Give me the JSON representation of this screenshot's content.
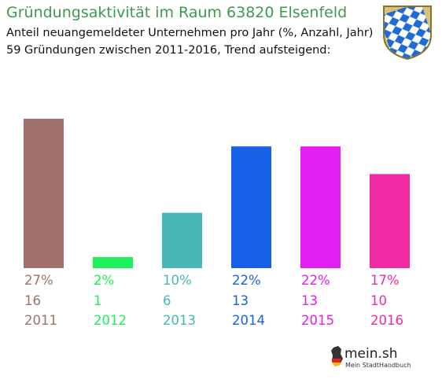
{
  "header": {
    "title": "Gründungsaktivität im Raum 63820 Elsenfeld",
    "subtitle": "Anteil neuangemeldeter Unternehmen pro Jahr (%, Anzahl, Jahr)",
    "summary": "59 Gründungen zwischen 2011-2016, Trend aufsteigend:"
  },
  "crest": {
    "icon": "bavaria-coat-of-arms-icon",
    "colors": [
      "#1e6bd6",
      "#ffffff"
    ]
  },
  "chart_data": {
    "type": "bar",
    "categories": [
      "2011",
      "2012",
      "2013",
      "2014",
      "2015",
      "2016"
    ],
    "series": [
      {
        "values": [
          27,
          2,
          10,
          22,
          22,
          17
        ],
        "labels": [
          "27%",
          "2%",
          "10%",
          "22%",
          "22%",
          "17%"
        ]
      },
      {
        "values": [
          16,
          1,
          6,
          13,
          13,
          10
        ],
        "labels": [
          "16",
          "1",
          "6",
          "13",
          "13",
          "10"
        ]
      }
    ],
    "colors": [
      "#a0706b",
      "#1df05a",
      "#47b8b6",
      "#1861e6",
      "#e21ef0",
      "#f02aa2"
    ],
    "ylim": [
      0,
      27
    ],
    "grid": false,
    "legend": "none"
  },
  "logo": {
    "text": "mein.sh",
    "tagline": "Mein StadtHandbuch",
    "icon": "germany-map-icon"
  }
}
